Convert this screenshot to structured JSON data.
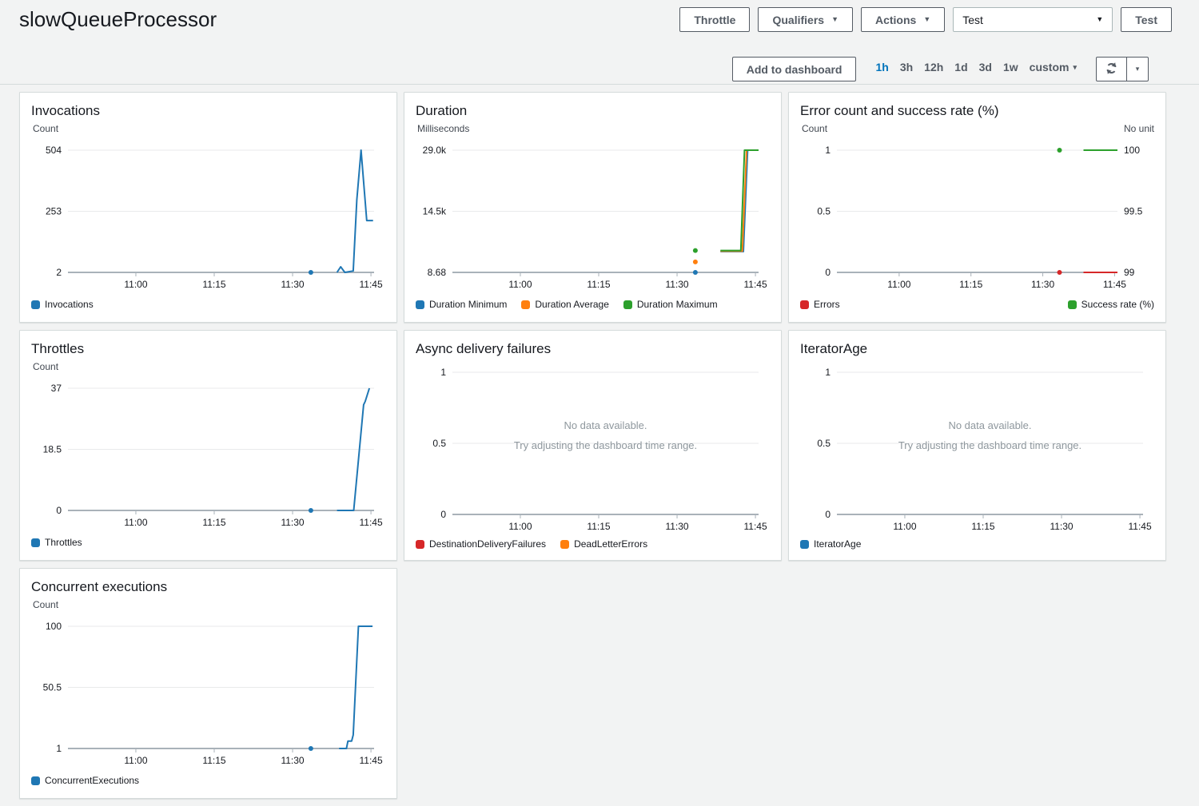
{
  "header": {
    "title": "slowQueueProcessor",
    "throttle_button": "Throttle",
    "qualifiers_button": "Qualifiers",
    "actions_button": "Actions",
    "test_select_value": "Test",
    "test_button": "Test"
  },
  "toolbar": {
    "add_to_dashboard": "Add to dashboard",
    "time_ranges": [
      "1h",
      "3h",
      "12h",
      "1d",
      "3d",
      "1w"
    ],
    "selected_range": "1h",
    "custom_label": "custom"
  },
  "colors": {
    "accent_blue": "#0073bb",
    "button_gray": "#545b64",
    "series_blue": "#1f77b4",
    "series_orange": "#ff7f0e",
    "series_green": "#2ca02c",
    "series_red": "#d62728",
    "axis_line": "#a9b2b9",
    "gridline": "#e9eaeb"
  },
  "chart_data": [
    {
      "id": "invocations",
      "type": "line",
      "title": "Invocations",
      "unit_left": "Count",
      "unit_right": null,
      "ylim": [
        2,
        504
      ],
      "yticks_left": [
        "504",
        "253",
        "2"
      ],
      "xlim": [
        2,
        60.6
      ],
      "xticks": [
        {
          "m": 15,
          "label": "11:00"
        },
        {
          "m": 30,
          "label": "11:15"
        },
        {
          "m": 45,
          "label": "11:30"
        },
        {
          "m": 60,
          "label": "11:45"
        }
      ],
      "legend": [
        {
          "label": "Invocations",
          "color": "#1f77b4"
        }
      ],
      "series": [
        {
          "name": "Invocations",
          "color": "#1f77b4",
          "dots": [
            [
              48.5,
              2
            ]
          ],
          "points": [
            [
              53.5,
              2
            ],
            [
              54.2,
              25
            ],
            [
              55,
              2
            ],
            [
              56.6,
              8
            ],
            [
              57.3,
              300
            ],
            [
              58.1,
              504
            ],
            [
              59.2,
              215
            ],
            [
              60.4,
              215
            ]
          ]
        }
      ]
    },
    {
      "id": "duration",
      "type": "line",
      "title": "Duration",
      "unit_left": "Milliseconds",
      "unit_right": null,
      "ylim": [
        8.68,
        29000
      ],
      "yticks_left": [
        "29.0k",
        "14.5k",
        "8.68"
      ],
      "xlim": [
        2,
        60.6
      ],
      "xticks": [
        {
          "m": 15,
          "label": "11:00"
        },
        {
          "m": 30,
          "label": "11:15"
        },
        {
          "m": 45,
          "label": "11:30"
        },
        {
          "m": 60,
          "label": "11:45"
        }
      ],
      "legend": [
        {
          "label": "Duration Minimum",
          "color": "#1f77b4"
        },
        {
          "label": "Duration Average",
          "color": "#ff7f0e"
        },
        {
          "label": "Duration Maximum",
          "color": "#2ca02c"
        }
      ],
      "series": [
        {
          "name": "Duration Minimum",
          "color": "#1f77b4",
          "dots": [
            [
              48.5,
              8.68
            ]
          ],
          "points": [
            [
              53.3,
              4950
            ],
            [
              57.7,
              4950
            ],
            [
              58.5,
              29000
            ],
            [
              60.2,
              29000
            ]
          ]
        },
        {
          "name": "Duration Average",
          "color": "#ff7f0e",
          "dots": [
            [
              48.5,
              2500
            ]
          ],
          "points": [
            [
              53.3,
              5050
            ],
            [
              57.5,
              5050
            ],
            [
              58.3,
              29000
            ],
            [
              60.4,
              29000
            ]
          ]
        },
        {
          "name": "Duration Maximum",
          "color": "#2ca02c",
          "dots": [
            [
              48.5,
              5200
            ]
          ],
          "points": [
            [
              53.3,
              5200
            ],
            [
              57.2,
              5200
            ],
            [
              57.9,
              29000
            ],
            [
              60.6,
              29000
            ]
          ]
        }
      ]
    },
    {
      "id": "error-count-success-rate",
      "type": "line",
      "title": "Error count and success rate (%)",
      "unit_left": "Count",
      "unit_right": "No unit",
      "ylim": [
        0,
        1
      ],
      "yticks_left": [
        "1",
        "0.5",
        "0"
      ],
      "ylim_right": [
        99,
        100
      ],
      "yticks_right": [
        "100",
        "99.5",
        "99"
      ],
      "xlim": [
        2,
        60.6
      ],
      "xticks": [
        {
          "m": 15,
          "label": "11:00"
        },
        {
          "m": 30,
          "label": "11:15"
        },
        {
          "m": 45,
          "label": "11:30"
        },
        {
          "m": 60,
          "label": "11:45"
        }
      ],
      "legend": [
        {
          "label": "Errors",
          "color": "#d62728"
        },
        {
          "label": "Success rate (%)",
          "color": "#2ca02c",
          "align": "right"
        }
      ],
      "series": [
        {
          "name": "Errors",
          "color": "#d62728",
          "dots": [
            [
              48.5,
              0
            ]
          ],
          "points": [
            [
              53.5,
              0
            ],
            [
              60.6,
              0
            ]
          ]
        },
        {
          "name": "Success rate (%)",
          "color": "#2ca02c",
          "axis": "right",
          "dots": [
            [
              48.5,
              100
            ]
          ],
          "points": [
            [
              53.5,
              100
            ],
            [
              60.6,
              100
            ]
          ]
        }
      ]
    },
    {
      "id": "throttles",
      "type": "line",
      "title": "Throttles",
      "unit_left": "Count",
      "unit_right": null,
      "ylim": [
        0,
        37
      ],
      "yticks_left": [
        "37",
        "18.5",
        "0"
      ],
      "xlim": [
        2,
        60.6
      ],
      "xticks": [
        {
          "m": 15,
          "label": "11:00"
        },
        {
          "m": 30,
          "label": "11:15"
        },
        {
          "m": 45,
          "label": "11:30"
        },
        {
          "m": 60,
          "label": "11:45"
        }
      ],
      "legend": [
        {
          "label": "Throttles",
          "color": "#1f77b4"
        }
      ],
      "series": [
        {
          "name": "Throttles",
          "color": "#1f77b4",
          "dots": [
            [
              48.5,
              0
            ]
          ],
          "points": [
            [
              53.5,
              0
            ],
            [
              56.7,
              0
            ],
            [
              58.6,
              32
            ],
            [
              58.9,
              33
            ],
            [
              59.7,
              37
            ]
          ]
        }
      ]
    },
    {
      "id": "async-delivery-failures",
      "type": "line",
      "title": "Async delivery failures",
      "unit_left": null,
      "unit_right": null,
      "ylim": [
        0,
        1
      ],
      "yticks_left": [
        "1",
        "0.5",
        "0"
      ],
      "xlim": [
        2,
        60.6
      ],
      "xticks": [
        {
          "m": 15,
          "label": "11:00"
        },
        {
          "m": 30,
          "label": "11:15"
        },
        {
          "m": 45,
          "label": "11:30"
        },
        {
          "m": 60,
          "label": "11:45"
        }
      ],
      "no_data": {
        "line1": "No data available.",
        "line2": "Try adjusting the dashboard time range."
      },
      "legend": [
        {
          "label": "DestinationDeliveryFailures",
          "color": "#d62728"
        },
        {
          "label": "DeadLetterErrors",
          "color": "#ff7f0e"
        }
      ],
      "series": []
    },
    {
      "id": "iterator-age",
      "type": "line",
      "title": "IteratorAge",
      "unit_left": null,
      "unit_right": null,
      "ylim": [
        0,
        1
      ],
      "yticks_left": [
        "1",
        "0.5",
        "0"
      ],
      "xlim": [
        2,
        60.6
      ],
      "xticks": [
        {
          "m": 15,
          "label": "11:00"
        },
        {
          "m": 30,
          "label": "11:15"
        },
        {
          "m": 45,
          "label": "11:30"
        },
        {
          "m": 60,
          "label": "11:45"
        }
      ],
      "no_data": {
        "line1": "No data available.",
        "line2": "Try adjusting the dashboard time range."
      },
      "legend": [
        {
          "label": "IteratorAge",
          "color": "#1f77b4"
        }
      ],
      "series": []
    },
    {
      "id": "concurrent-executions",
      "type": "line",
      "title": "Concurrent executions",
      "unit_left": "Count",
      "unit_right": null,
      "ylim": [
        1,
        100
      ],
      "yticks_left": [
        "100",
        "50.5",
        "1"
      ],
      "xlim": [
        2,
        60.6
      ],
      "xticks": [
        {
          "m": 15,
          "label": "11:00"
        },
        {
          "m": 30,
          "label": "11:15"
        },
        {
          "m": 45,
          "label": "11:30"
        },
        {
          "m": 60,
          "label": "11:45"
        }
      ],
      "legend": [
        {
          "label": "ConcurrentExecutions",
          "color": "#1f77b4"
        }
      ],
      "series": [
        {
          "name": "ConcurrentExecutions",
          "color": "#1f77b4",
          "dots": [
            [
              48.5,
              1
            ]
          ],
          "points": [
            [
              53.9,
              1
            ],
            [
              55.3,
              1
            ],
            [
              55.6,
              7
            ],
            [
              56.3,
              7
            ],
            [
              56.6,
              12
            ],
            [
              57.6,
              100
            ],
            [
              60.3,
              100
            ]
          ]
        }
      ]
    }
  ]
}
